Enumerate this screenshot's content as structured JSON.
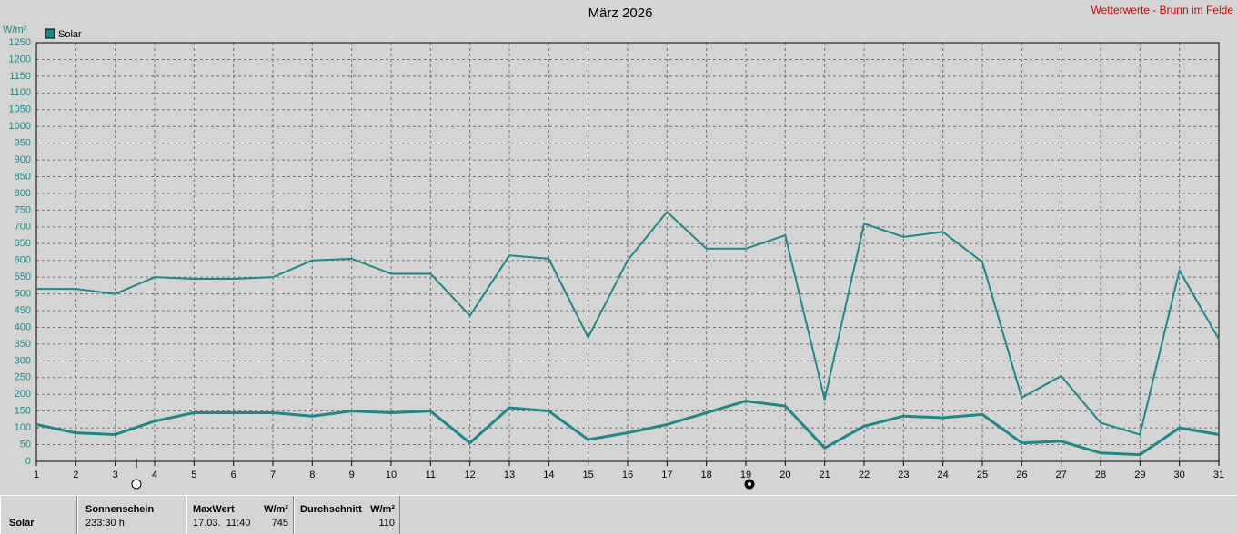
{
  "chart_data": {
    "type": "line",
    "title": "März 2026",
    "source": "Wetterwerte - Brunn im Felde",
    "y_label": "W/m²",
    "x": [
      1,
      2,
      3,
      4,
      5,
      6,
      7,
      8,
      9,
      10,
      11,
      12,
      13,
      14,
      15,
      16,
      17,
      18,
      19,
      20,
      21,
      22,
      23,
      24,
      25,
      26,
      27,
      28,
      29,
      30,
      31
    ],
    "xlim": [
      1,
      31
    ],
    "xticks": [
      1,
      2,
      3,
      4,
      5,
      6,
      7,
      8,
      9,
      10,
      11,
      12,
      13,
      14,
      15,
      16,
      17,
      18,
      19,
      20,
      21,
      22,
      23,
      24,
      25,
      26,
      27,
      28,
      29,
      30,
      31
    ],
    "ylim": [
      0,
      1250
    ],
    "yticks": [
      0,
      50,
      100,
      150,
      200,
      250,
      300,
      350,
      400,
      450,
      500,
      550,
      600,
      650,
      700,
      750,
      800,
      850,
      900,
      950,
      1000,
      1050,
      1100,
      1150,
      1200,
      1250
    ],
    "grid": true,
    "series": [
      {
        "name": "Solar",
        "color": "#198a8a",
        "values": [
          515,
          515,
          500,
          550,
          545,
          545,
          550,
          600,
          605,
          560,
          560,
          435,
          615,
          605,
          370,
          600,
          745,
          635,
          635,
          675,
          185,
          710,
          670,
          685,
          595,
          190,
          255,
          115,
          80,
          570,
          365
        ]
      },
      {
        "color": "#198a8a",
        "values": [
          110,
          85,
          80,
          120,
          145,
          145,
          145,
          135,
          150,
          145,
          150,
          55,
          160,
          150,
          65,
          85,
          110,
          145,
          180,
          165,
          40,
          105,
          135,
          130,
          140,
          55,
          60,
          25,
          20,
          100,
          80
        ]
      }
    ]
  },
  "stats": {
    "row_label": "Solar",
    "sunshine": {
      "label": "Sonnenschein",
      "value": "233:30 h"
    },
    "max": {
      "label": "MaxWert",
      "unit": "W/m²",
      "time": "17.03.  11:40",
      "value": 745
    },
    "average": {
      "label": "Durchschnitt",
      "unit": "W/m²",
      "value": 110
    }
  }
}
